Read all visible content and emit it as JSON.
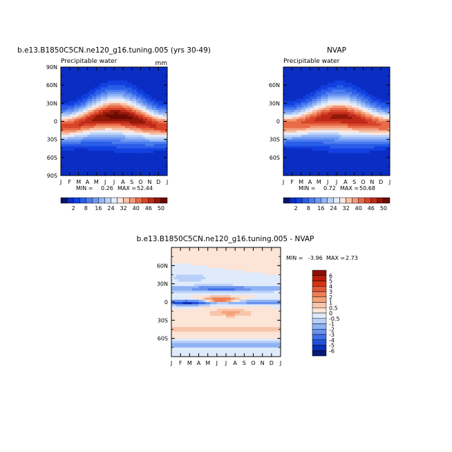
{
  "chart_data": [
    {
      "type": "heatmap",
      "title": "b.e13.B1850C5CN.ne120_g16.tuning.005 (yrs 30-49)",
      "subtitle_left": "Precipitable water",
      "subtitle_right": "mm",
      "x_ticklabels": [
        "J",
        "F",
        "M",
        "A",
        "M",
        "J",
        "J",
        "A",
        "S",
        "O",
        "N",
        "D",
        "J"
      ],
      "y_ticklabels": [
        "90N",
        "60N",
        "30N",
        "0",
        "30S",
        "60S",
        "90S"
      ],
      "y_tickvalues": [
        90,
        60,
        30,
        0,
        -30,
        -60,
        -90
      ],
      "ylim": [
        -90,
        90
      ],
      "stats": {
        "min_label": "MIN =",
        "min": "0.26",
        "max_label": "MAX =",
        "max": "52.44"
      },
      "field": {
        "equator_peak": 48,
        "peak_lat_shift": 9,
        "peak_month": 7.5,
        "pole_value": 2
      }
    },
    {
      "type": "heatmap",
      "title": "NVAP",
      "subtitle_left": "Precipitable water",
      "subtitle_right": "",
      "x_ticklabels": [
        "J",
        "F",
        "M",
        "A",
        "M",
        "J",
        "J",
        "A",
        "S",
        "O",
        "N",
        "D",
        "J"
      ],
      "y_ticklabels": [
        "60N",
        "30N",
        "0",
        "30S",
        "60S"
      ],
      "y_tickvalues": [
        60,
        30,
        0,
        -30,
        -60
      ],
      "ylim": [
        -90,
        90
      ],
      "stats": {
        "min_label": "MIN =",
        "min": "0.72",
        "max_label": "MAX =",
        "max": "50.68"
      },
      "field": {
        "equator_peak": 46,
        "peak_lat_shift": 7,
        "peak_month": 7.5,
        "pole_value": 2
      }
    },
    {
      "type": "heatmap",
      "title": "b.e13.B1850C5CN.ne120_g16.tuning.005 - NVAP",
      "x_ticklabels": [
        "J",
        "F",
        "M",
        "A",
        "M",
        "J",
        "J",
        "A",
        "S",
        "O",
        "N",
        "D",
        "J"
      ],
      "y_ticklabels": [
        "60N",
        "30N",
        "0",
        "30S",
        "60S"
      ],
      "y_tickvalues": [
        60,
        30,
        0,
        -30,
        -60
      ],
      "ylim": [
        -90,
        90
      ],
      "stats": {
        "min_label": "MIN =",
        "min": "-3.96",
        "max_label": "MAX =",
        "max": "2.73"
      }
    }
  ],
  "colorbar_abs": {
    "labels": [
      "2",
      "8",
      "16",
      "24",
      "32",
      "40",
      "46",
      "50"
    ],
    "colors": [
      "#08136b",
      "#0a2dc4",
      "#1240e0",
      "#2a5de8",
      "#4b7cef",
      "#6e98f2",
      "#94b6f5",
      "#bcd3f8",
      "#e4ecfb",
      "#fce6dc",
      "#f8c2a8",
      "#f29a78",
      "#e86c48",
      "#d8452a",
      "#c02a18",
      "#901808",
      "#6a0a02"
    ]
  },
  "colorbar_diff": {
    "labels": [
      "6",
      "5",
      "4",
      "3",
      "2",
      "1",
      "0.5",
      "0",
      "-0.5",
      "-1",
      "-2",
      "-3",
      "-4",
      "-5",
      "-6"
    ],
    "colors": [
      "#8b1004",
      "#b81c08",
      "#d43414",
      "#e45a34",
      "#ee7e56",
      "#f4a27c",
      "#f8c4a8",
      "#fce4d6",
      "#dfeafb",
      "#b8d0f8",
      "#8fb2f4",
      "#6892ee",
      "#4070e6",
      "#2050dc",
      "#0c2fb8",
      "#081a7a"
    ]
  }
}
